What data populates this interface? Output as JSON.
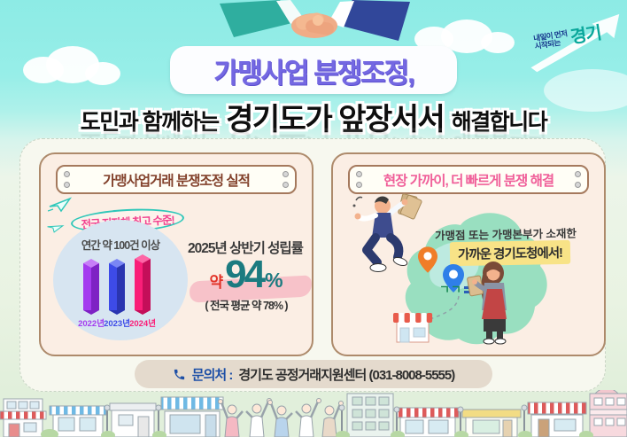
{
  "colors": {
    "sky": "#97eee8",
    "panel": "#f7f8ef",
    "card_bg": "#fbeee4",
    "card_border": "#ad8a6b",
    "title_purple": "#7468e2",
    "left_header_text": "#83422c",
    "right_header_text": "#f0609a",
    "badge_pink": "#f2418f",
    "badge_oval_teal": "#2fc7b9",
    "stat_teal": "#1b7b80",
    "stat_red": "#e23227",
    "brush_pink": "#f6bcc5",
    "highlight_yellow": "#f8e387",
    "map_green": "#99dfc0",
    "contact_blue": "#1d4fa6",
    "contact_bg": "#e4dacd",
    "bottom_green": "#e1efdb"
  },
  "header": {
    "title_badge": "가맹사업 분쟁조정,",
    "subtitle_prefix": "도민과 함께하는",
    "subtitle_emph": "경기도가 앞장서서",
    "subtitle_suffix": "해결합니다",
    "logo_small_1": "내일이 먼저",
    "logo_small_2": "시작되는",
    "logo_brand": "경기"
  },
  "left_card": {
    "header": "가맹사업거래 분쟁조정 실적",
    "badge": "전국 지자체 최고 수준!",
    "stat_title": "2025년 상반기 성립률",
    "stat_approx": "약",
    "stat_value_num": "94",
    "stat_value_unit": "%",
    "stat_note": "( 전국 평균 약 78% )"
  },
  "right_card": {
    "header": "현장 가까이, 더 빠르게 분쟁 해결",
    "line1": "가맹점 또는 가맹본부가 소재한",
    "line2": "가까운 경기도청에서!",
    "map_logo": "ㄱㄱ"
  },
  "contact": {
    "label": "문의처 :",
    "value": "경기도 공정거래지원센터 (031-8008-5555)"
  },
  "chart_data": {
    "type": "bar",
    "title": "연간 약 100건 이상",
    "categories": [
      "2022년",
      "2023년",
      "2024년"
    ],
    "values": [
      100,
      100,
      110
    ],
    "unit": "건",
    "legend_position": "none",
    "grid": false,
    "colors": [
      "#a43bef",
      "#3d4be8",
      "#fa1e78"
    ],
    "colors_light": [
      "#c77ef7",
      "#7a86f4",
      "#fd66a6"
    ],
    "colors_dark": [
      "#7e22c4",
      "#2a35b0",
      "#c40e59"
    ]
  }
}
